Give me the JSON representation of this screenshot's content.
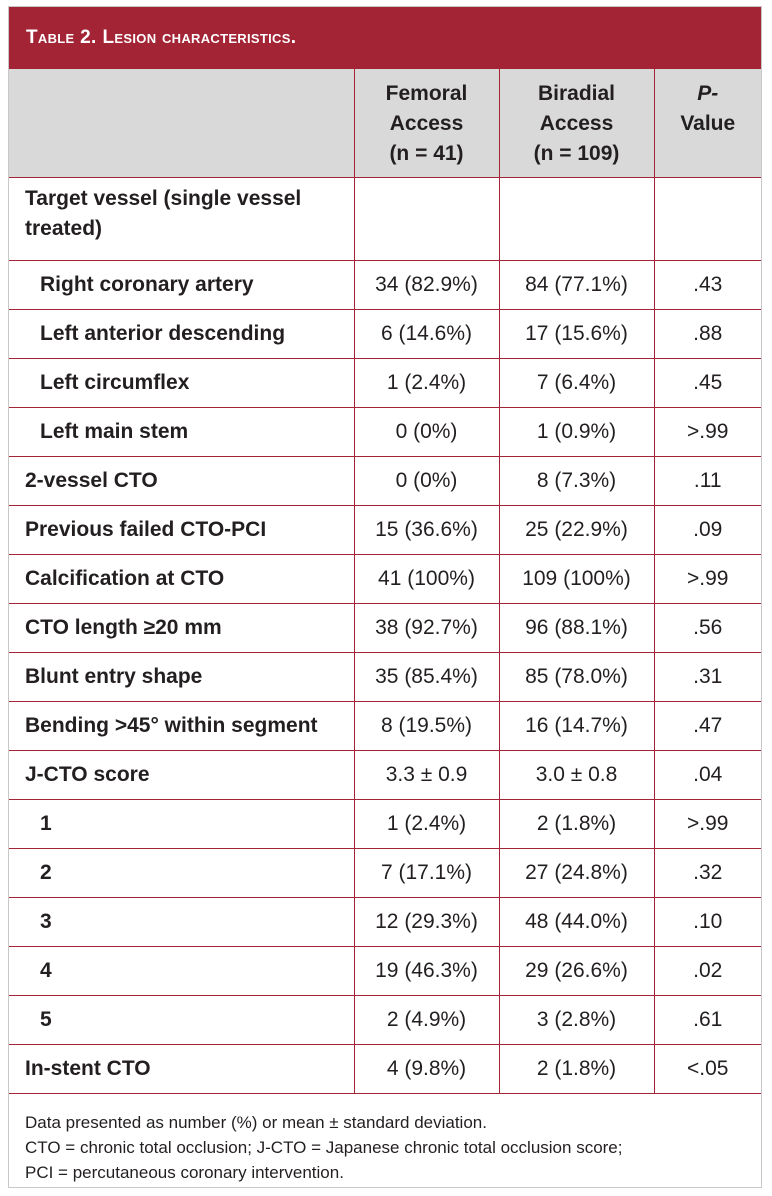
{
  "title": {
    "prefix": "Table 2.",
    "text": "Lesion characteristics."
  },
  "header": {
    "col0": "",
    "col1": [
      "Femoral",
      "Access",
      "(n = 41)"
    ],
    "col2": [
      "Biradial",
      "Access",
      "(n = 109)"
    ],
    "col3": [
      "P-",
      "Value"
    ]
  },
  "rows": [
    {
      "label": "Target vessel (single vessel treated)",
      "femoral": "",
      "biradial": "",
      "p": ""
    },
    {
      "label": "Right coronary artery",
      "femoral": "34 (82.9%)",
      "biradial": "84 (77.1%)",
      "p": ".43"
    },
    {
      "label": "Left anterior descending",
      "femoral": "6 (14.6%)",
      "biradial": "17 (15.6%)",
      "p": ".88"
    },
    {
      "label": "Left circumflex",
      "femoral": "1 (2.4%)",
      "biradial": "7 (6.4%)",
      "p": ".45"
    },
    {
      "label": "Left main stem",
      "femoral": "0 (0%)",
      "biradial": "1 (0.9%)",
      "p": ">.99"
    },
    {
      "label": "2-vessel CTO",
      "femoral": "0 (0%)",
      "biradial": "8 (7.3%)",
      "p": ".11"
    },
    {
      "label": "Previous failed CTO-PCI",
      "femoral": "15 (36.6%)",
      "biradial": "25 (22.9%)",
      "p": ".09"
    },
    {
      "label": "Calcification at CTO",
      "femoral": "41 (100%)",
      "biradial": "109 (100%)",
      "p": ">.99"
    },
    {
      "label": "CTO length ≥20 mm",
      "femoral": "38 (92.7%)",
      "biradial": "96 (88.1%)",
      "p": ".56"
    },
    {
      "label": "Blunt entry shape",
      "femoral": "35 (85.4%)",
      "biradial": "85 (78.0%)",
      "p": ".31"
    },
    {
      "label": "Bending >45° within segment",
      "femoral": "8 (19.5%)",
      "biradial": "16 (14.7%)",
      "p": ".47"
    },
    {
      "label": "J-CTO score",
      "femoral": "3.3 ± 0.9",
      "biradial": "3.0 ± 0.8",
      "p": ".04"
    },
    {
      "label": "1",
      "femoral": "1 (2.4%)",
      "biradial": "2 (1.8%)",
      "p": ">.99"
    },
    {
      "label": "2",
      "femoral": "7 (17.1%)",
      "biradial": "27 (24.8%)",
      "p": ".32"
    },
    {
      "label": "3",
      "femoral": "12 (29.3%)",
      "biradial": "48 (44.0%)",
      "p": ".10"
    },
    {
      "label": "4",
      "femoral": "19 (46.3%)",
      "biradial": "29 (26.6%)",
      "p": ".02"
    },
    {
      "label": "5",
      "femoral": "2 (4.9%)",
      "biradial": "3 (2.8%)",
      "p": ".61"
    },
    {
      "label": "In-stent CTO",
      "femoral": "4 (9.8%)",
      "biradial": "2 (1.8%)",
      "p": "<.05"
    }
  ],
  "footnote": [
    "Data presented as number (%) or mean ± standard deviation.",
    "CTO = chronic total occlusion; J-CTO = Japanese chronic total occlusion score;",
    "PCI = percutaneous coronary intervention."
  ],
  "colors": {
    "title_bar": "#a32435",
    "header_bg": "#d9d9d9",
    "rule": "#a32435"
  }
}
